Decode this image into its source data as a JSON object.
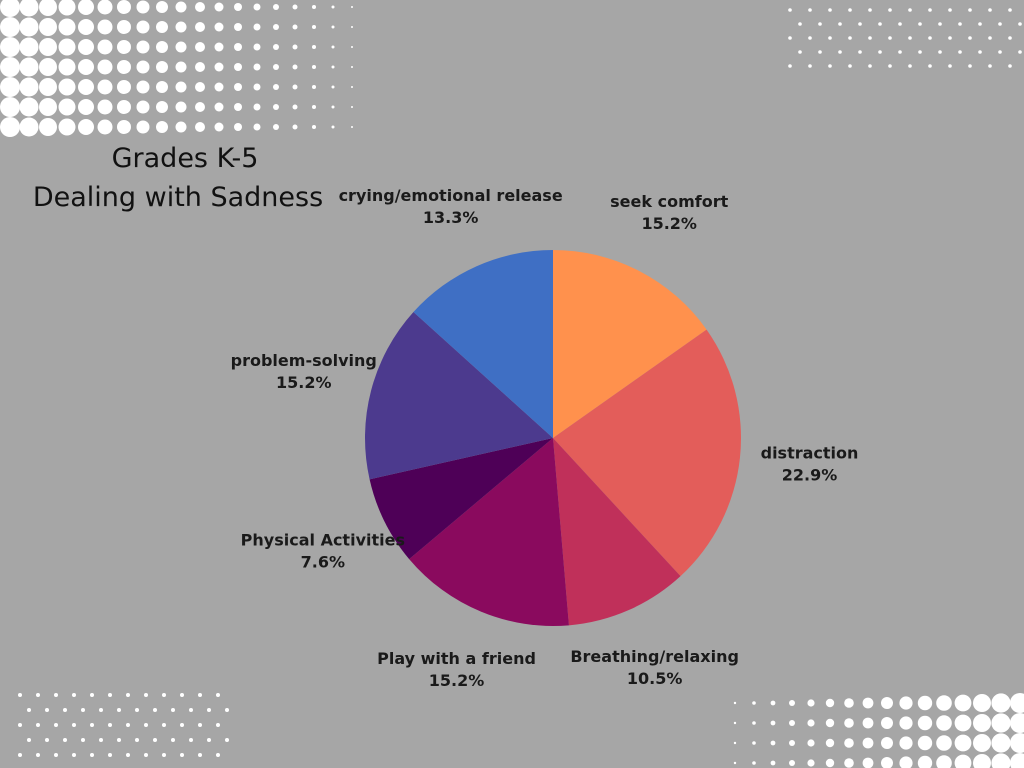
{
  "chart_data": {
    "type": "pie",
    "title": "Grades K-5",
    "subtitle": "Dealing with Sadness",
    "categories": [
      "seek comfort",
      "distraction",
      "Breathing/relaxing",
      "Play with a friend",
      "Physical Activities",
      "problem-solving",
      "crying/emotional release"
    ],
    "values": [
      15.2,
      22.9,
      10.5,
      15.2,
      7.6,
      15.2,
      13.3
    ],
    "value_labels": [
      "15.2%",
      "22.9%",
      "10.5%",
      "15.2%",
      "7.6%",
      "15.2%",
      "13.3%"
    ],
    "colors": [
      "#ff914d",
      "#e35d5a",
      "#c0305a",
      "#8a0a5e",
      "#4e0057",
      "#4c3a8e",
      "#3f6fc4"
    ]
  }
}
